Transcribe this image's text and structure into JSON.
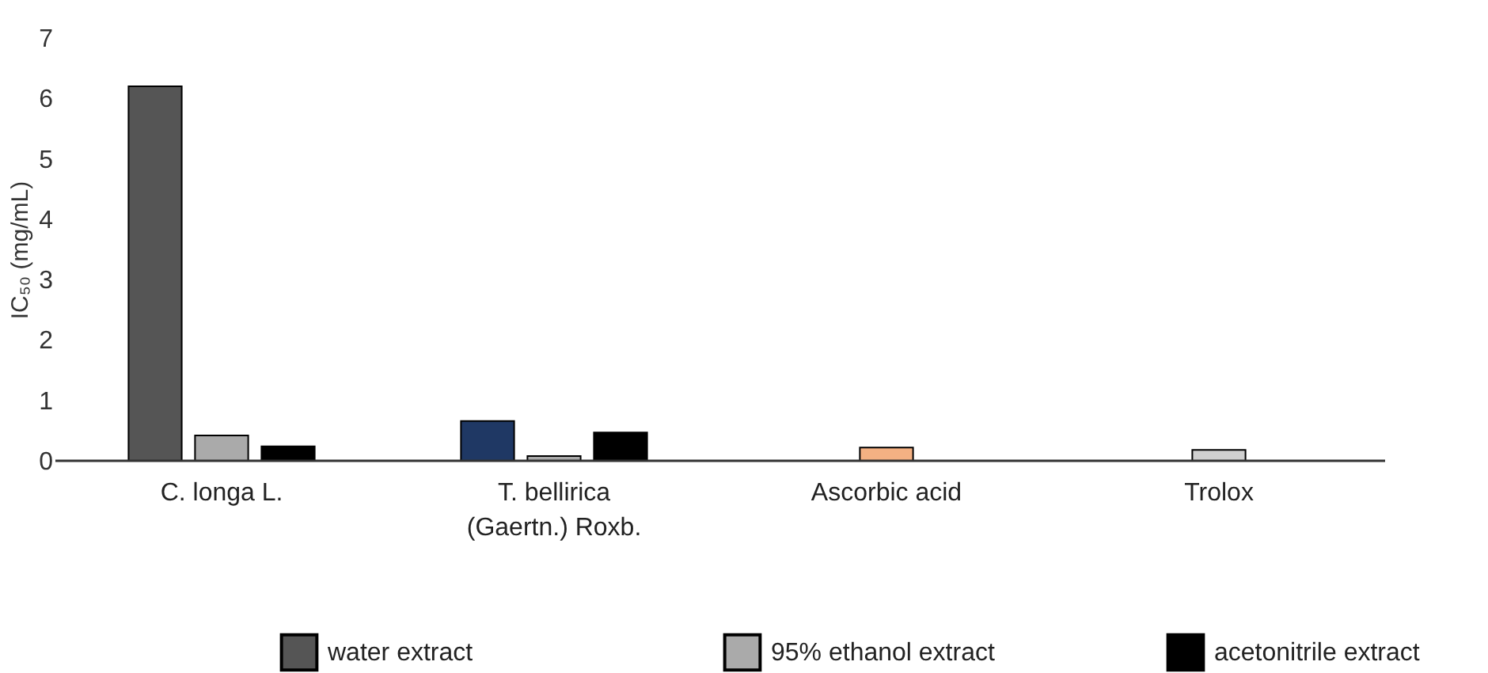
{
  "chart_data": {
    "type": "bar",
    "ylabel": "IC₅₀ (mg/mL)",
    "categories": [
      "C. longa L.",
      "T. bellirica\n(Gaertn.) Roxb.",
      "Ascorbic acid",
      "Trolox"
    ],
    "series": [
      {
        "name": "water extract",
        "color": "#555555",
        "colors": [
          "#555555",
          "#1f3864",
          null,
          null
        ],
        "values": [
          6.2,
          0.66,
          null,
          null
        ]
      },
      {
        "name": "95% ethanol extract",
        "color": "#aaaaaa",
        "values": [
          0.42,
          0.08,
          null,
          null
        ]
      },
      {
        "name": "acetonitrile extract",
        "color": "#000000",
        "values": [
          0.24,
          0.47,
          null,
          null
        ]
      },
      {
        "colors": [
          null,
          null,
          "#f4b183",
          "#d0d0d0"
        ],
        "values": [
          null,
          null,
          0.22,
          0.18
        ]
      }
    ],
    "ylim": [
      0,
      7
    ],
    "yticks": [
      0,
      1,
      2,
      3,
      4,
      5,
      6,
      7
    ],
    "grid": false,
    "legend": "bottom"
  }
}
